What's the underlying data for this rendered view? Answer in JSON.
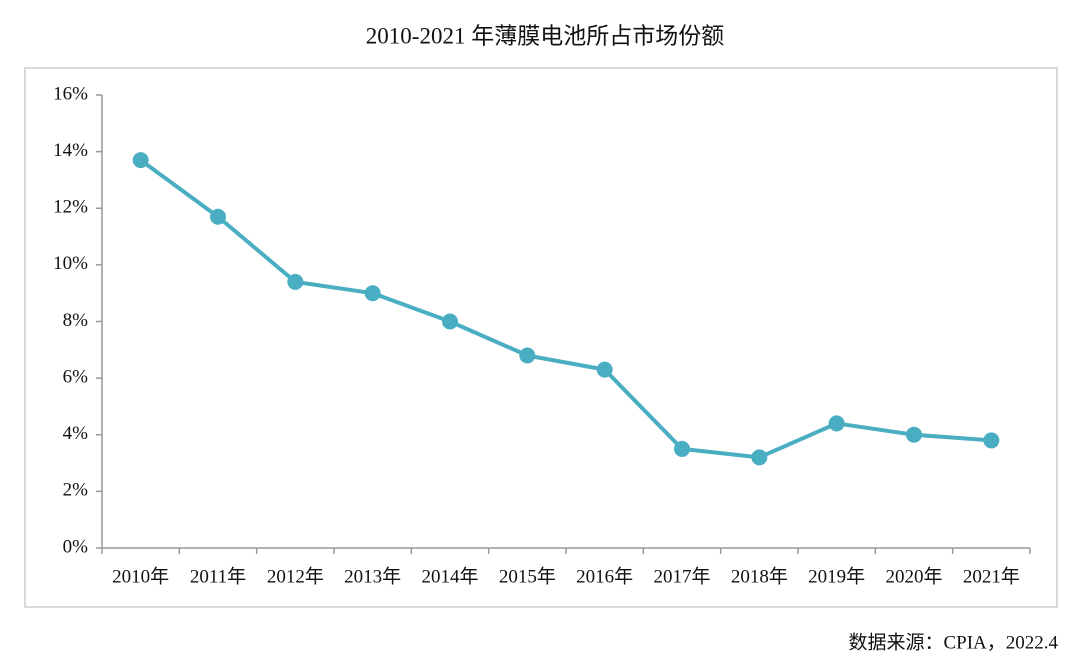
{
  "chart_data": {
    "type": "line",
    "title": "2010-2021 年薄膜电池所占市场份额",
    "source": "数据来源：CPIA，2022.4",
    "categories": [
      "2010年",
      "2011年",
      "2012年",
      "2013年",
      "2014年",
      "2015年",
      "2016年",
      "2017年",
      "2018年",
      "2019年",
      "2020年",
      "2021年"
    ],
    "values": [
      13.7,
      11.7,
      9.4,
      9.0,
      8.0,
      6.8,
      6.3,
      3.5,
      3.2,
      4.4,
      4.0,
      3.8
    ],
    "color": "#4aaec2",
    "ylim": [
      0,
      16
    ],
    "yticks": [
      {
        "value": 0,
        "label": "0%"
      },
      {
        "value": 2,
        "label": "2%"
      },
      {
        "value": 4,
        "label": "4%"
      },
      {
        "value": 6,
        "label": "6%"
      },
      {
        "value": 8,
        "label": "8%"
      },
      {
        "value": 10,
        "label": "10%"
      },
      {
        "value": 12,
        "label": "12%"
      },
      {
        "value": 14,
        "label": "14%"
      },
      {
        "value": 16,
        "label": "16%"
      }
    ],
    "grid": false
  }
}
